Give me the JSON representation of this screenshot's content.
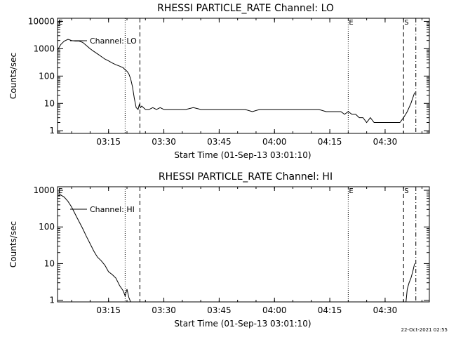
{
  "footer": {
    "timestamp": "22-Oct-2021 02:55"
  },
  "chart_data": [
    {
      "type": "line",
      "title": "RHESSI PARTICLE_RATE Channel: LO",
      "xlabel": "Start Time (01-Sep-13 03:01:10)",
      "ylabel": "Counts/sec",
      "yscale": "log",
      "ylim": [
        0.8,
        13000
      ],
      "xlim": [
        "03:01:10",
        "04:42:00"
      ],
      "xticks": [
        "03:15",
        "03:30",
        "03:45",
        "04:00",
        "04:15",
        "04:30"
      ],
      "yticks": [
        "1",
        "10",
        "100",
        "1000",
        "10000"
      ],
      "legend": {
        "position": "top-left",
        "entries": [
          "Channel: LO"
        ]
      },
      "markers": [
        {
          "label": "E",
          "time": "03:01:10",
          "style": "solid"
        },
        {
          "label": "",
          "time": "03:19:30",
          "style": "dotted"
        },
        {
          "label": "",
          "time": "03:23:30",
          "style": "dashed"
        },
        {
          "label": "E",
          "time": "04:20:00",
          "style": "dotted"
        },
        {
          "label": "S",
          "time": "04:35:00",
          "style": "dashed"
        },
        {
          "label": "",
          "time": "04:38:20",
          "style": "dash-dot"
        }
      ],
      "series": [
        {
          "name": "Channel: LO",
          "x": [
            "03:01:10",
            "03:02:00",
            "03:03:00",
            "03:04:00",
            "03:05:00",
            "03:06:00",
            "03:07:00",
            "03:08:00",
            "03:09:00",
            "03:10:00",
            "03:11:00",
            "03:12:00",
            "03:13:00",
            "03:14:00",
            "03:15:00",
            "03:16:00",
            "03:17:00",
            "03:18:00",
            "03:19:00",
            "03:19:30",
            "03:20:00",
            "03:20:30",
            "03:21:00",
            "03:21:30",
            "03:22:00",
            "03:22:30",
            "03:23:00",
            "03:23:20",
            "03:23:40",
            "03:24:00",
            "03:25:00",
            "03:26:00",
            "03:27:00",
            "03:28:00",
            "03:29:00",
            "03:30:00",
            "03:32:00",
            "03:34:00",
            "03:36:00",
            "03:38:00",
            "03:40:00",
            "03:42:00",
            "03:44:00",
            "03:46:00",
            "03:48:00",
            "03:50:00",
            "03:52:00",
            "03:54:00",
            "03:56:00",
            "03:58:00",
            "04:00:00",
            "04:02:00",
            "04:04:00",
            "04:06:00",
            "04:08:00",
            "04:10:00",
            "04:12:00",
            "04:14:00",
            "04:16:00",
            "04:18:00",
            "04:19:00",
            "04:20:00",
            "04:21:00",
            "04:22:00",
            "04:23:00",
            "04:24:00",
            "04:25:00",
            "04:26:00",
            "04:27:00",
            "04:28:00",
            "04:29:00",
            "04:30:00",
            "04:31:00",
            "04:32:00",
            "04:33:00",
            "04:34:00",
            "04:35:00",
            "04:36:00",
            "04:37:00",
            "04:38:00"
          ],
          "values": [
            900,
            1400,
            1900,
            2200,
            2000,
            1900,
            1900,
            1700,
            1300,
            1000,
            800,
            650,
            520,
            420,
            360,
            300,
            260,
            230,
            200,
            170,
            150,
            120,
            80,
            40,
            15,
            7,
            6,
            9,
            7,
            8,
            6,
            6,
            7,
            6,
            7,
            6,
            6,
            6,
            6,
            7,
            6,
            6,
            6,
            6,
            6,
            6,
            6,
            5,
            6,
            6,
            6,
            6,
            6,
            6,
            6,
            6,
            6,
            5,
            5,
            5,
            4,
            5,
            4,
            4,
            3,
            3,
            2,
            3,
            2,
            2,
            2,
            2,
            2,
            2,
            2,
            2,
            3,
            5,
            10,
            25
          ]
        }
      ]
    },
    {
      "type": "line",
      "title": "RHESSI PARTICLE_RATE Channel: HI",
      "xlabel": "Start Time (01-Sep-13 03:01:10)",
      "ylabel": "Counts/sec",
      "yscale": "log",
      "ylim": [
        0.9,
        1250
      ],
      "xlim": [
        "03:01:10",
        "04:42:00"
      ],
      "xticks": [
        "03:15",
        "03:30",
        "03:45",
        "04:00",
        "04:15",
        "04:30"
      ],
      "yticks": [
        "1",
        "10",
        "100",
        "1000"
      ],
      "legend": {
        "position": "top-left",
        "entries": [
          "Channel: HI"
        ]
      },
      "markers": [
        {
          "label": "E",
          "time": "03:01:10",
          "style": "solid"
        },
        {
          "label": "",
          "time": "03:19:30",
          "style": "dotted"
        },
        {
          "label": "",
          "time": "03:23:30",
          "style": "dashed"
        },
        {
          "label": "E",
          "time": "04:20:00",
          "style": "dotted"
        },
        {
          "label": "S",
          "time": "04:35:00",
          "style": "dashed"
        },
        {
          "label": "",
          "time": "04:38:20",
          "style": "dash-dot"
        }
      ],
      "series": [
        {
          "name": "Channel: HI",
          "x": [
            "03:01:10",
            "03:02:00",
            "03:03:00",
            "03:04:00",
            "03:05:00",
            "03:06:00",
            "03:07:00",
            "03:08:00",
            "03:09:00",
            "03:10:00",
            "03:11:00",
            "03:12:00",
            "03:13:00",
            "03:14:00",
            "03:15:00",
            "03:16:00",
            "03:17:00",
            "03:18:00",
            "03:19:00",
            "03:19:30",
            "03:20:00",
            "03:20:30",
            "03:21:00",
            "04:35:40",
            "04:36:00",
            "04:36:30",
            "04:37:00",
            "04:37:30",
            "04:38:00"
          ],
          "values": [
            700,
            750,
            650,
            500,
            350,
            220,
            140,
            90,
            55,
            35,
            22,
            15,
            12,
            9,
            6,
            5,
            4,
            2.5,
            1.8,
            1.3,
            2,
            1.2,
            0.9,
            0.9,
            2,
            3,
            4,
            6,
            10
          ]
        }
      ]
    }
  ]
}
